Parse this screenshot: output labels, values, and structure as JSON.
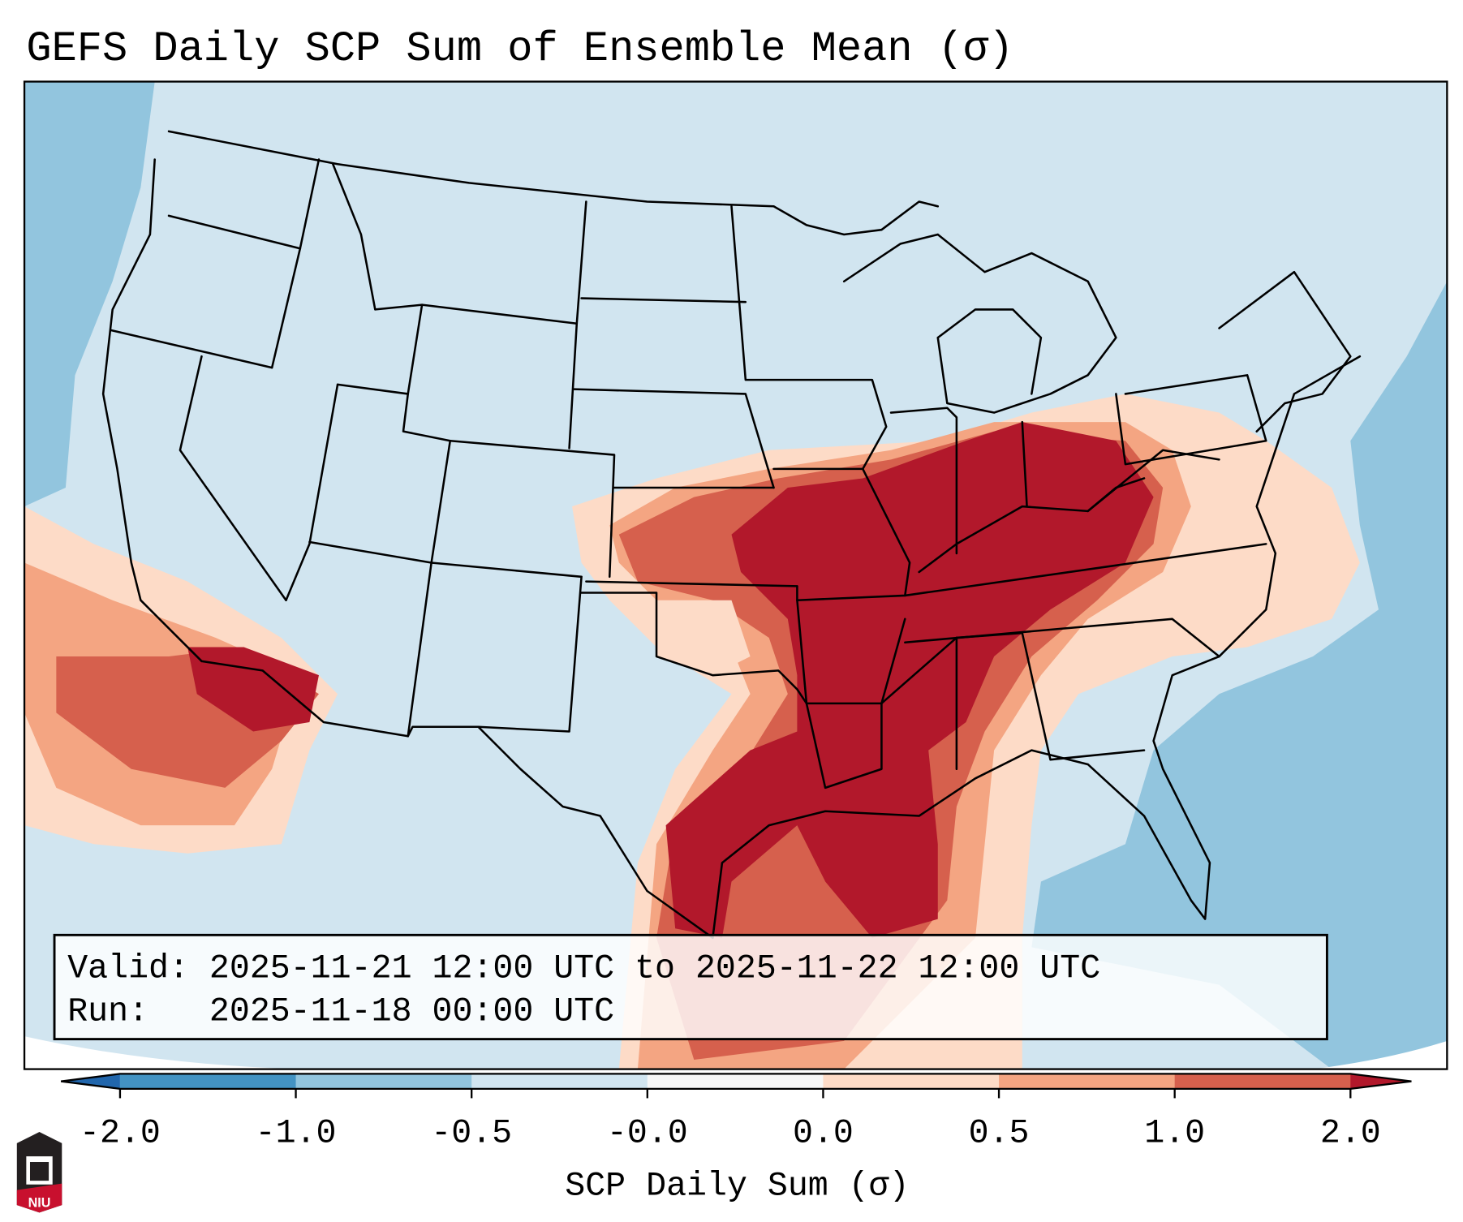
{
  "title": "GEFS Daily SCP Sum of Ensemble Mean (σ)",
  "info_box": {
    "valid_line": "Valid: 2025-11-21 12:00 UTC to 2025-11-22 12:00 UTC",
    "run_line": "Run:   2025-11-18 00:00 UTC"
  },
  "colorbar": {
    "label": "SCP Daily Sum (σ)",
    "ticks": [
      "-2.0",
      "-1.0",
      "-0.5",
      "-0.0",
      "0.0",
      "0.5",
      "1.0",
      "2.0"
    ],
    "under_color": "#2166ac",
    "over_color": "#b2182b",
    "bin_colors": [
      "#4393c3",
      "#92c5de",
      "#d1e5f0",
      "#f7f7f7",
      "#fddbc7",
      "#f4a582",
      "#d6604d"
    ]
  },
  "logo": {
    "text": "NIU"
  },
  "colors": {
    "land": "#d1e5f0",
    "ocean_low": "#92c5de",
    "low_pos": "#fddbc7",
    "mid_pos": "#f4a582",
    "high_pos": "#d6604d",
    "max_pos": "#b2182b"
  }
}
